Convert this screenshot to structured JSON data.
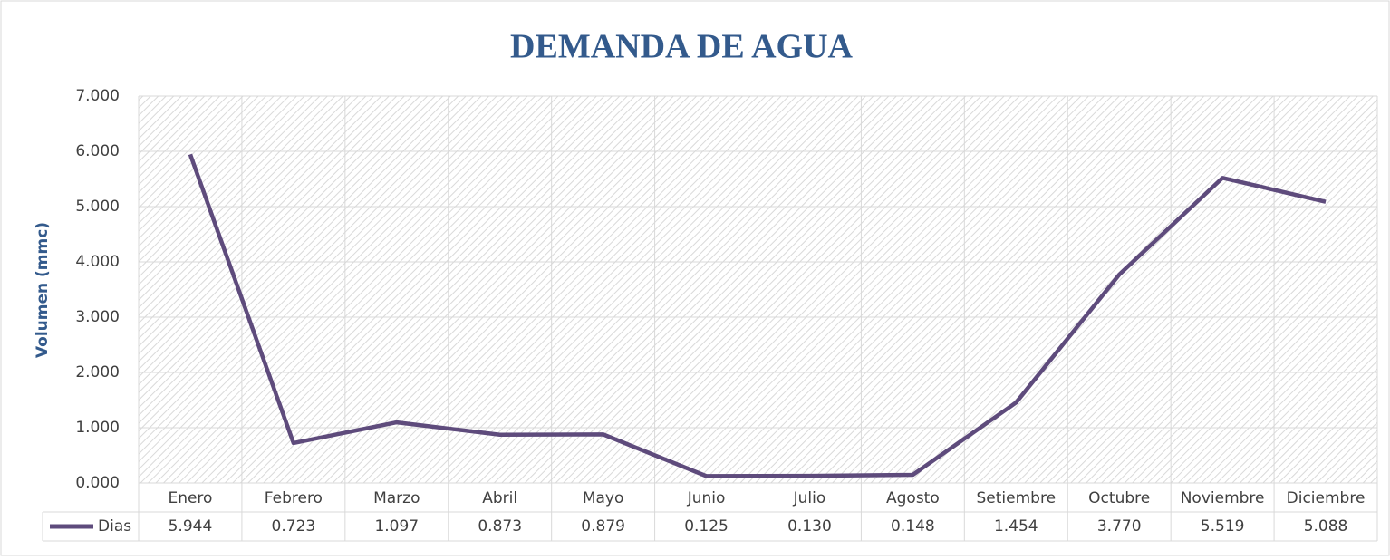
{
  "chart_data": {
    "type": "line",
    "title": "DEMANDA DE AGUA",
    "y_label": "Volumen (mmc)",
    "categories": [
      "Enero",
      "Febrero",
      "Marzo",
      "Abril",
      "Mayo",
      "Junio",
      "Julio",
      "Agosto",
      "Setiembre",
      "Octubre",
      "Noviembre",
      "Diciembre"
    ],
    "series": [
      {
        "name": "Dias",
        "color": "#5e4b7c",
        "values": [
          5.944,
          0.723,
          1.097,
          0.873,
          0.879,
          0.125,
          0.13,
          0.148,
          1.454,
          3.77,
          5.519,
          5.088
        ],
        "value_labels": [
          "5.944",
          "0.723",
          "1.097",
          "0.873",
          "0.879",
          "0.125",
          "0.130",
          "0.148",
          "1.454",
          "3.770",
          "5.519",
          "5.088"
        ]
      }
    ],
    "ylim": [
      0,
      7
    ],
    "yticks": [
      {
        "value": 0,
        "label": "0.000"
      },
      {
        "value": 1,
        "label": "1.000"
      },
      {
        "value": 2,
        "label": "2.000"
      },
      {
        "value": 3,
        "label": "3.000"
      },
      {
        "value": 4,
        "label": "4.000"
      },
      {
        "value": 5,
        "label": "5.000"
      },
      {
        "value": 6,
        "label": "6.000"
      },
      {
        "value": 7,
        "label": "7.000"
      }
    ],
    "grid": true,
    "data_table": true
  }
}
